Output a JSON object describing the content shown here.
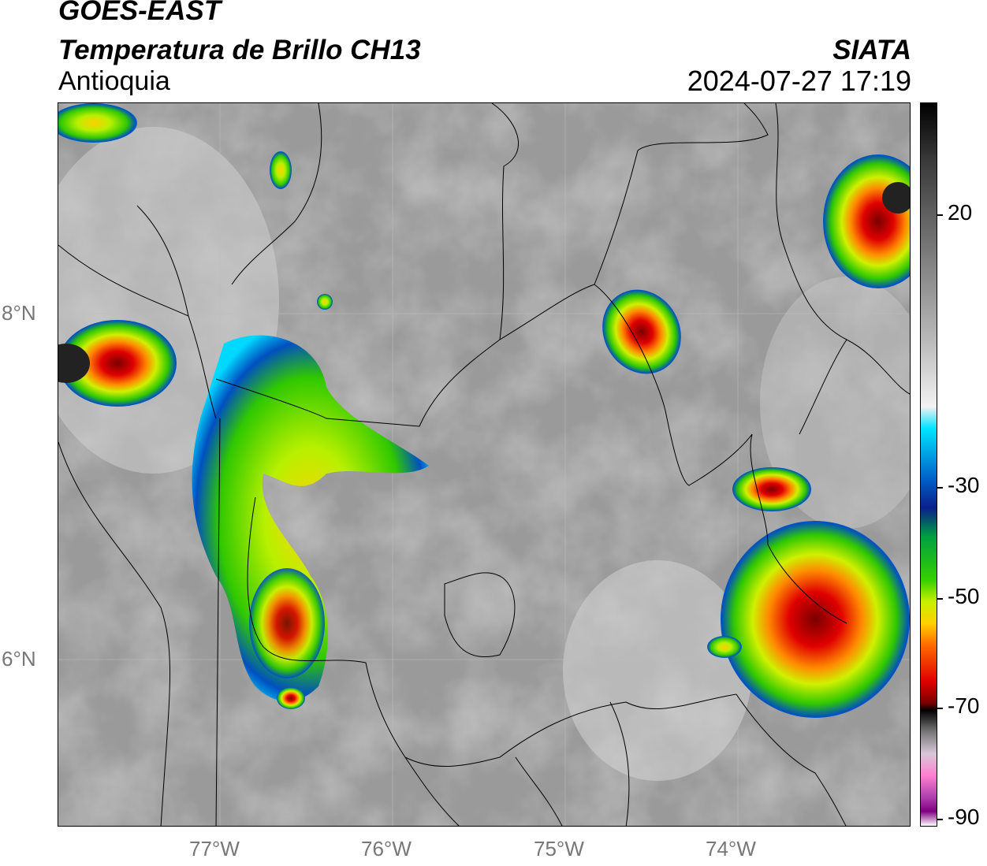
{
  "header": {
    "satellite": "GOES-EAST",
    "product": "Temperatura de Brillo CH13",
    "region": "Antioquia",
    "organization": "SIATA",
    "timestamp": "2024-07-27 17:19"
  },
  "map": {
    "x_ticks": [
      "77°W",
      "76°W",
      "75°W",
      "74°W"
    ],
    "y_ticks": [
      "8°N",
      "6°N"
    ]
  },
  "colorbar": {
    "labels": [
      "20",
      "-30",
      "-50",
      "-70",
      "-90"
    ],
    "stops": [
      "#000000",
      "#3a3a3a",
      "#777777",
      "#b5b5b5",
      "#f2f2f2",
      "#00e5ff",
      "#0060c8",
      "#0a1f8a",
      "#00a040",
      "#35d000",
      "#c8f000",
      "#ffd000",
      "#ff6a00",
      "#e00000",
      "#7a0000",
      "#000000",
      "#777777",
      "#d8c8d8",
      "#ff80d0",
      "#b040b0",
      "#800080",
      "#ffffff"
    ]
  }
}
